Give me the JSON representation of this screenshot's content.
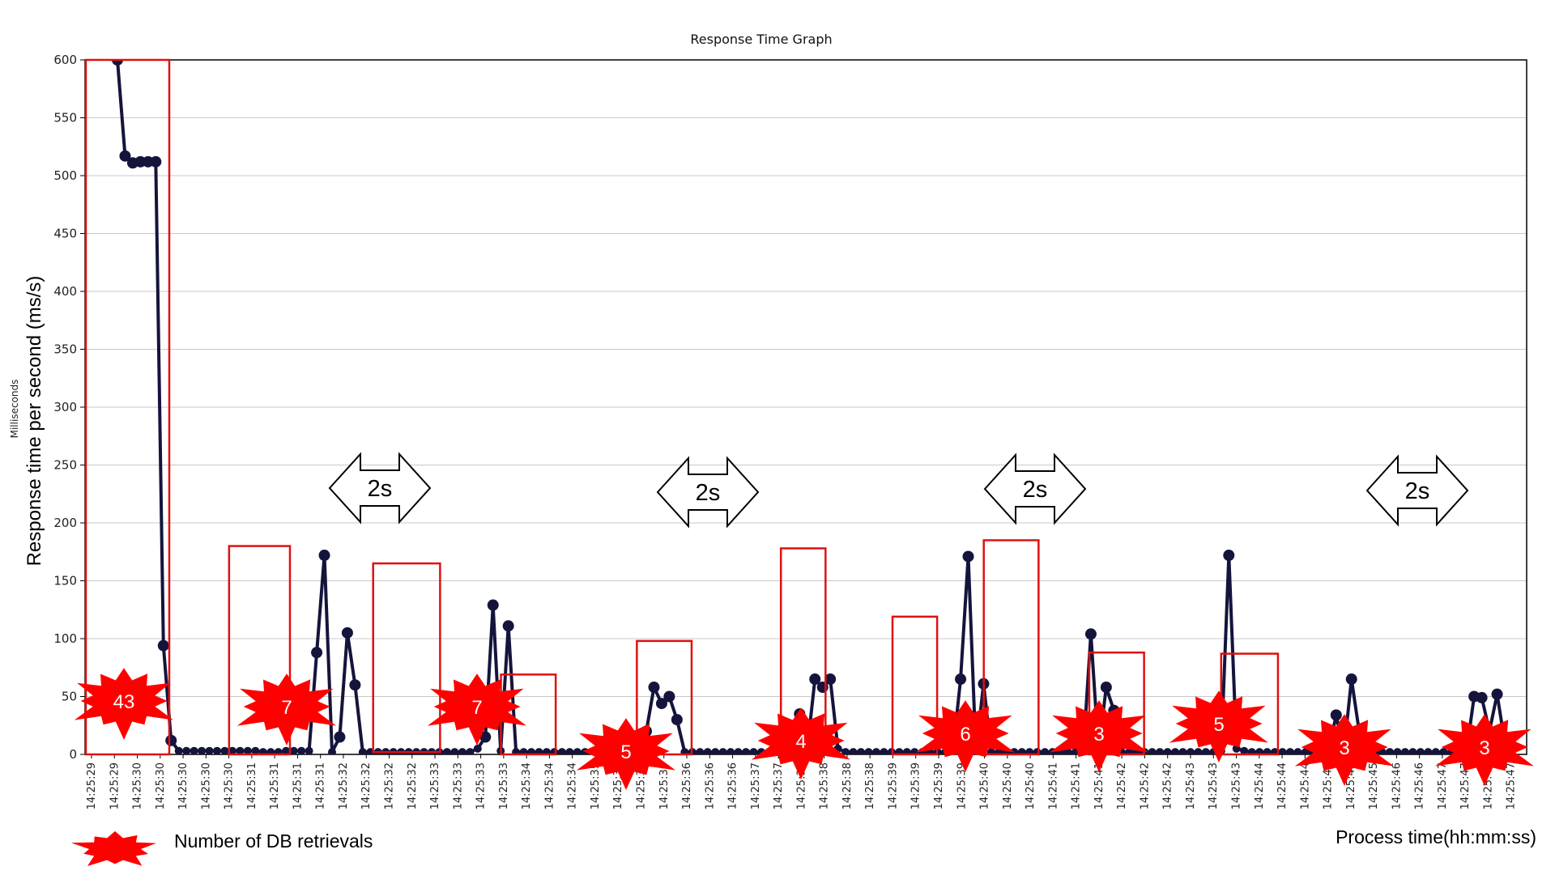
{
  "chart_data": {
    "type": "line",
    "title": "Response Time Graph",
    "y_axis_small_label": "Milliseconds",
    "ylabel": "Response time per second (ms/s)",
    "xlabel": "Process time(hh:mm:ss)",
    "ylim": [
      0,
      600
    ],
    "y_ticks": [
      0,
      50,
      100,
      150,
      200,
      250,
      300,
      350,
      400,
      450,
      500,
      550,
      600
    ],
    "grid": "horizontal",
    "x_tick_labels": [
      "14:25:29",
      "14:25:29",
      "14:25:30",
      "14:25:30",
      "14:25:30",
      "14:25:30",
      "14:25:30",
      "14:25:31",
      "14:25:31",
      "14:25:31",
      "14:25:31",
      "14:25:32",
      "14:25:32",
      "14:25:32",
      "14:25:32",
      "14:25:33",
      "14:25:33",
      "14:25:33",
      "14:25:33",
      "14:25:34",
      "14:25:34",
      "14:25:34",
      "14:25:35",
      "14:25:35",
      "14:25:35",
      "14:25:36",
      "14:25:36",
      "14:25:36",
      "14:25:36",
      "14:25:37",
      "14:25:37",
      "14:25:37",
      "14:25:38",
      "14:25:38",
      "14:25:38",
      "14:25:39",
      "14:25:39",
      "14:25:39",
      "14:25:39",
      "14:25:40",
      "14:25:40",
      "14:25:40",
      "14:25:41",
      "14:25:41",
      "14:25:41",
      "14:25:42",
      "14:25:42",
      "14:25:42",
      "14:25:43",
      "14:25:43",
      "14:25:43",
      "14:25:44",
      "14:25:44",
      "14:25:44",
      "14:25:45",
      "14:25:45",
      "14:25:45",
      "14:25:46",
      "14:25:46",
      "14:25:47",
      "14:25:47",
      "14:25:47",
      "14:25:47"
    ],
    "series": [
      {
        "color": "#14143c",
        "values": [
          600,
          517,
          511,
          512,
          512,
          512,
          94,
          12,
          3,
          3,
          3,
          3,
          3,
          3,
          3,
          3,
          3,
          3,
          3,
          2,
          2,
          2,
          3,
          3,
          3,
          3,
          88,
          172,
          2,
          15,
          105,
          60,
          2,
          2,
          2,
          2,
          2,
          2,
          2,
          2,
          2,
          2,
          2,
          2,
          2,
          2,
          2,
          5,
          15,
          129,
          3,
          111,
          2,
          2,
          2,
          2,
          2,
          2,
          2,
          2,
          2,
          2,
          2,
          2,
          2,
          2,
          2,
          2,
          2,
          20,
          58,
          44,
          50,
          30,
          2,
          2,
          2,
          2,
          2,
          2,
          2,
          2,
          2,
          2,
          2,
          2,
          2,
          2,
          2,
          35,
          5,
          65,
          58,
          65,
          5,
          2,
          2,
          2,
          2,
          2,
          2,
          2,
          2,
          2,
          2,
          2,
          2,
          2,
          2,
          2,
          65,
          171,
          2,
          61,
          2,
          2,
          2,
          2,
          2,
          2,
          2,
          2,
          2,
          2,
          2,
          2,
          2,
          104,
          3,
          58,
          38,
          2,
          2,
          2,
          2,
          2,
          2,
          2,
          2,
          2,
          2,
          2,
          2,
          2,
          3,
          172,
          5,
          3,
          2,
          2,
          2,
          2,
          2,
          2,
          2,
          2,
          2,
          2,
          2,
          34,
          2,
          65,
          20,
          2,
          2,
          2,
          2,
          2,
          2,
          2,
          2,
          2,
          2,
          2,
          2,
          2,
          2,
          50,
          49,
          20,
          52,
          10
        ]
      }
    ],
    "annotations": {
      "db_retrievals": [
        43,
        7,
        7,
        5,
        4,
        6,
        3,
        5,
        3,
        3
      ],
      "interval_label": "2s",
      "legend_text": "Number of DB retrievals"
    }
  },
  "colors": {
    "line": "#14143c",
    "burst": "#ff0000",
    "box": "#e01010",
    "grid": "#c8c8c8"
  }
}
